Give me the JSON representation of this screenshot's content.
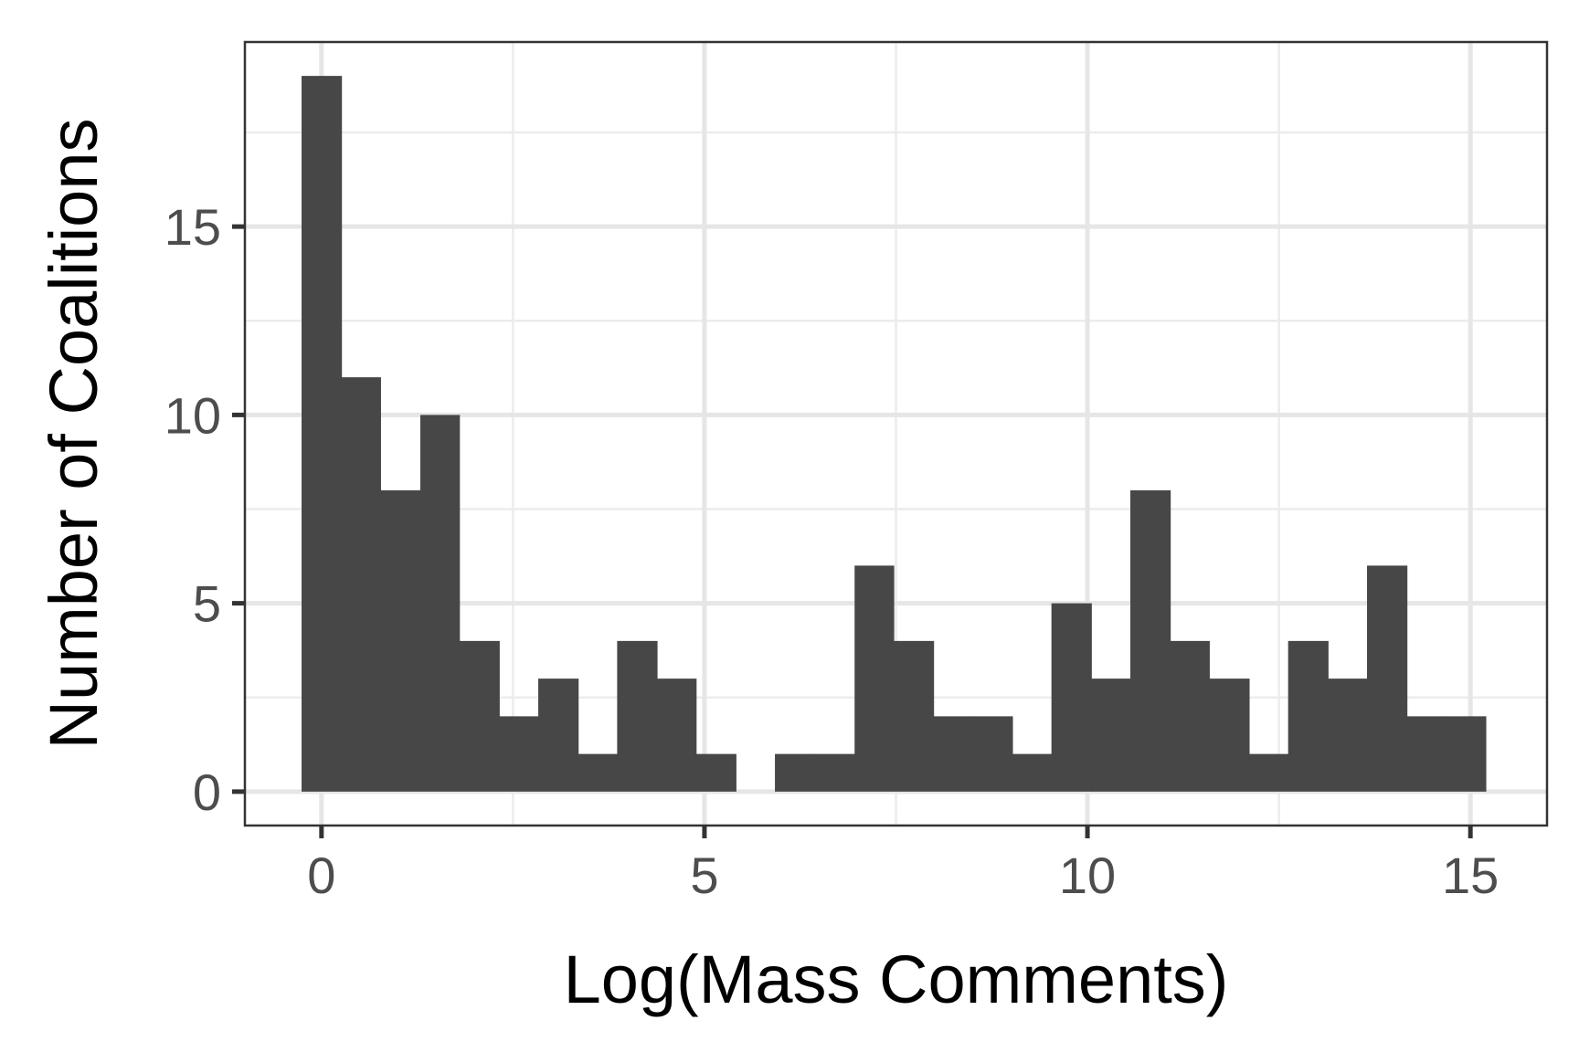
{
  "chart_data": {
    "type": "bar",
    "subtype": "histogram",
    "title": "",
    "xlabel": "Log(Mass Comments)",
    "ylabel": "Number of Coalitions",
    "xlim": [
      -1,
      16
    ],
    "ylim": [
      -0.9,
      19.9
    ],
    "x_ticks": [
      0,
      5,
      10,
      15
    ],
    "y_ticks": [
      0,
      5,
      10,
      15
    ],
    "bin_width": 0.515,
    "bins": [
      {
        "x_start": -0.26,
        "x_end": 0.26,
        "count": 19
      },
      {
        "x_start": 0.26,
        "x_end": 0.77,
        "count": 11
      },
      {
        "x_start": 0.77,
        "x_end": 1.29,
        "count": 8
      },
      {
        "x_start": 1.29,
        "x_end": 1.8,
        "count": 10
      },
      {
        "x_start": 1.8,
        "x_end": 2.32,
        "count": 4
      },
      {
        "x_start": 2.32,
        "x_end": 2.83,
        "count": 2
      },
      {
        "x_start": 2.83,
        "x_end": 3.35,
        "count": 3
      },
      {
        "x_start": 3.35,
        "x_end": 3.86,
        "count": 1
      },
      {
        "x_start": 3.86,
        "x_end": 4.38,
        "count": 4
      },
      {
        "x_start": 4.38,
        "x_end": 4.89,
        "count": 3
      },
      {
        "x_start": 4.89,
        "x_end": 5.41,
        "count": 1
      },
      {
        "x_start": 5.41,
        "x_end": 5.92,
        "count": 0
      },
      {
        "x_start": 5.92,
        "x_end": 6.44,
        "count": 1
      },
      {
        "x_start": 6.44,
        "x_end": 6.96,
        "count": 1
      },
      {
        "x_start": 6.96,
        "x_end": 7.47,
        "count": 6
      },
      {
        "x_start": 7.47,
        "x_end": 7.99,
        "count": 4
      },
      {
        "x_start": 7.99,
        "x_end": 8.5,
        "count": 2
      },
      {
        "x_start": 8.5,
        "x_end": 9.02,
        "count": 2
      },
      {
        "x_start": 9.02,
        "x_end": 9.53,
        "count": 1
      },
      {
        "x_start": 9.53,
        "x_end": 10.05,
        "count": 5
      },
      {
        "x_start": 10.05,
        "x_end": 10.56,
        "count": 3
      },
      {
        "x_start": 10.56,
        "x_end": 11.08,
        "count": 8
      },
      {
        "x_start": 11.08,
        "x_end": 11.59,
        "count": 4
      },
      {
        "x_start": 11.59,
        "x_end": 12.11,
        "count": 3
      },
      {
        "x_start": 12.11,
        "x_end": 12.62,
        "count": 1
      },
      {
        "x_start": 12.62,
        "x_end": 13.14,
        "count": 4
      },
      {
        "x_start": 13.14,
        "x_end": 13.65,
        "count": 3
      },
      {
        "x_start": 13.65,
        "x_end": 14.17,
        "count": 6
      },
      {
        "x_start": 14.17,
        "x_end": 14.68,
        "count": 2
      },
      {
        "x_start": 14.68,
        "x_end": 15.2,
        "count": 2
      }
    ],
    "grid": true,
    "legend": "none",
    "colors": {
      "bar": "#474747",
      "panel_border": "#333333",
      "grid_major": "#e6e6e6",
      "grid_minor": "#ececec",
      "tick_text": "#4d4d4d",
      "axis_title": "#000000"
    }
  }
}
